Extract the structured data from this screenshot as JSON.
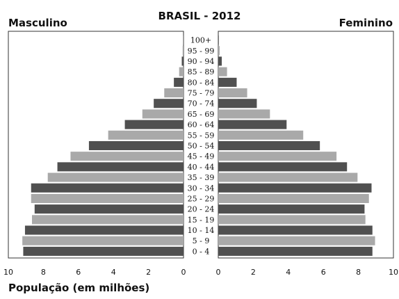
{
  "chart_data": {
    "type": "bar",
    "title": "BRASIL - 2012",
    "left_label": "Masculino",
    "right_label": "Feminino",
    "xlabel": "População (em milhões)",
    "xlim": [
      0,
      10
    ],
    "ticks": [
      10,
      8,
      6,
      4,
      2,
      0
    ],
    "tick_labels_left": [
      "10",
      "8",
      "6",
      "4",
      "2",
      "0"
    ],
    "tick_labels_right": [
      "0",
      "2",
      "4",
      "6",
      "8",
      "10"
    ],
    "categories": [
      "100+",
      "95 - 99",
      "90 - 94",
      "85 - 89",
      "80 - 84",
      "75 - 79",
      "70 - 74",
      "65 - 69",
      "60 - 64",
      "55 - 59",
      "50 - 54",
      "45 - 49",
      "40 - 44",
      "35 - 39",
      "30 - 34",
      "25 - 29",
      "20 - 24",
      "15 - 19",
      "10 - 14",
      "5 - 9",
      "0 - 4"
    ],
    "series": [
      {
        "name": "Masculino",
        "values": [
          0.02,
          0.05,
          0.1,
          0.25,
          0.55,
          1.1,
          1.7,
          2.35,
          3.35,
          4.3,
          5.4,
          6.45,
          7.2,
          7.75,
          8.7,
          8.7,
          8.5,
          8.65,
          9.05,
          9.2,
          9.15
        ]
      },
      {
        "name": "Feminino",
        "values": [
          0.03,
          0.08,
          0.2,
          0.5,
          1.05,
          1.65,
          2.2,
          2.95,
          3.9,
          4.85,
          5.8,
          6.75,
          7.35,
          7.95,
          8.75,
          8.6,
          8.35,
          8.4,
          8.8,
          8.95,
          8.8
        ]
      }
    ],
    "bar_colors": [
      "#505050",
      "#a9a9a9"
    ],
    "grid": false,
    "legend": "none"
  }
}
